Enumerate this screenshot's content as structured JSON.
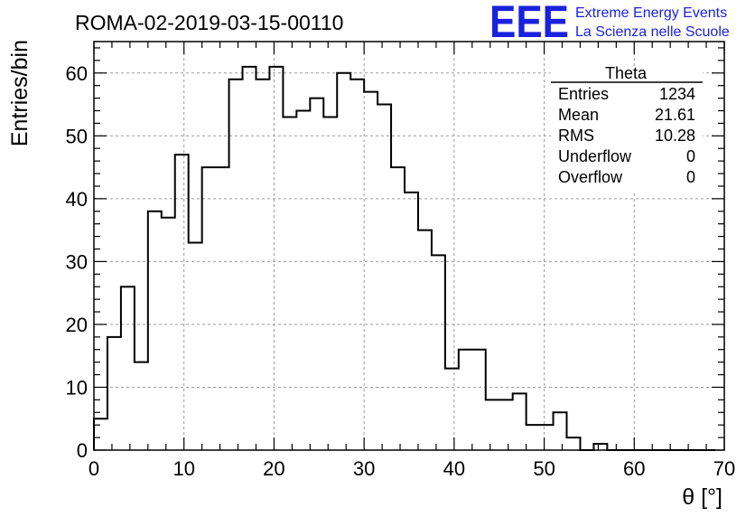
{
  "chart_data": {
    "type": "bar",
    "title": "ROMA-02-2019-03-15-00110",
    "xlabel": "θ [°]",
    "ylabel": "Entries/bin",
    "xlim": [
      0,
      70
    ],
    "ylim": [
      0,
      65
    ],
    "xticks": [
      0,
      10,
      20,
      30,
      40,
      50,
      60,
      70
    ],
    "yticks": [
      0,
      10,
      20,
      30,
      40,
      50,
      60
    ],
    "grid": true,
    "bin_width": 1.5,
    "bin_edges_start": 0,
    "series": [
      {
        "values": [
          5,
          18,
          26,
          14,
          38,
          37,
          47,
          33,
          45,
          45,
          59,
          61,
          59,
          61,
          53,
          54,
          56,
          53,
          60,
          59,
          57,
          55,
          45,
          41,
          35,
          31,
          13,
          16,
          16,
          8,
          8,
          9,
          4,
          4,
          6,
          2,
          0,
          1,
          0,
          0,
          0,
          0,
          0,
          0,
          0,
          0
        ]
      }
    ]
  },
  "stats_box": {
    "title": "Theta",
    "rows": [
      {
        "label": "Entries",
        "value": "1234"
      },
      {
        "label": "Mean",
        "value": "21.61"
      },
      {
        "label": "RMS",
        "value": "10.28"
      },
      {
        "label": "Underflow",
        "value": "0"
      },
      {
        "label": "Overflow",
        "value": "0"
      }
    ]
  },
  "logo": {
    "mark": "EEE",
    "line1": "Extreme Energy Events",
    "line2": "La Scienza nelle Scuole",
    "color": "#1a22dd"
  }
}
